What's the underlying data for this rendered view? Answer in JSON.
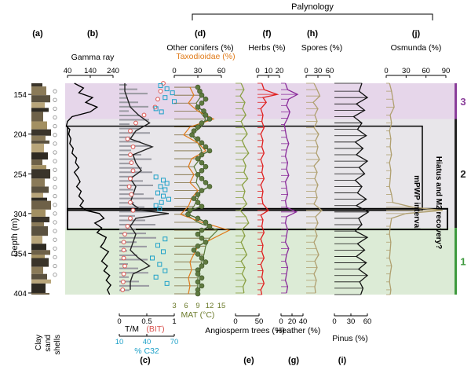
{
  "chart_data": {
    "type": "line",
    "title": "Palynology",
    "depth_axis": {
      "label": "Depth (m)",
      "ticks": [
        154,
        204,
        254,
        304,
        354,
        404
      ],
      "range": [
        140,
        406
      ]
    },
    "zones": [
      {
        "label": "3",
        "top": 140,
        "bottom": 185,
        "color": "#e6d6ea",
        "bar": "#8a3e9a"
      },
      {
        "label": "2",
        "top": 185,
        "bottom": 322,
        "color": "#e8e6ea",
        "bar": "#222222"
      },
      {
        "label": "1",
        "top": 322,
        "bottom": 406,
        "color": "#dcebd6",
        "bar": "#3e9a3e"
      }
    ],
    "annotations": {
      "mpwp": {
        "label": "mPWP interval",
        "top": 194,
        "bottom": 300
      },
      "hiatus": {
        "label": "Hiatus and M2 recovery?",
        "top": 298,
        "bottom": 324
      }
    },
    "lithology_legend": [
      "Clay",
      "sand",
      "shells"
    ],
    "panels": [
      {
        "id": "a",
        "label": "(a)"
      },
      {
        "id": "b",
        "label": "(b)",
        "name": "Gamma ray",
        "ticks": [
          40,
          140,
          240
        ]
      },
      {
        "id": "c",
        "label": "(c)",
        "lines": [
          {
            "name": "T/M",
            "color": "#222222",
            "ticks": [
              "0",
              "0.5",
              "1"
            ]
          },
          {
            "name": "(BIT)",
            "color": "#d9534f"
          },
          {
            "name": "% C32",
            "color": "#1ea1c8",
            "ticks": [
              "10",
              "40",
              "70"
            ]
          }
        ]
      },
      {
        "id": "d",
        "label": "(d)",
        "names": [
          "Other conifers (%)",
          "Taxodioidae (%)",
          "MAT (°C)"
        ],
        "ticks_top": [
          0,
          30,
          60
        ],
        "ticks_bottom": [
          3,
          6,
          9,
          12,
          15
        ]
      },
      {
        "id": "e",
        "label": "(e)",
        "name": "Angiosperm trees (%)",
        "ticks": [
          0,
          50
        ]
      },
      {
        "id": "f",
        "label": "(f)",
        "name": "Herbs (%)",
        "ticks": [
          0,
          10,
          20
        ]
      },
      {
        "id": "g",
        "label": "(g)",
        "name": "Heather (%)",
        "ticks": [
          0,
          20,
          40
        ]
      },
      {
        "id": "h",
        "label": "(h)",
        "name": "Spores (%)",
        "ticks": [
          0,
          30,
          60
        ]
      },
      {
        "id": "i",
        "label": "(i)",
        "name": "Pinus (%)",
        "ticks": [
          0,
          30,
          60
        ]
      },
      {
        "id": "j",
        "label": "(j)",
        "name": "Osmunda (%)",
        "ticks": [
          0,
          30,
          60,
          90
        ]
      }
    ],
    "series": {
      "gamma": {
        "depths": [
          140,
          146,
          152,
          158,
          164,
          170,
          176,
          182,
          188,
          194,
          198,
          204,
          210,
          216,
          222,
          228,
          234,
          240,
          246,
          252,
          258,
          264,
          270,
          276,
          282,
          288,
          294,
          300,
          304,
          310,
          316,
          322,
          328,
          334,
          340,
          346,
          352,
          358,
          364,
          370,
          376,
          382,
          388,
          394,
          400,
          406
        ],
        "values": [
          70,
          110,
          90,
          150,
          120,
          170,
          140,
          60,
          40,
          35,
          50,
          45,
          55,
          50,
          65,
          60,
          80,
          75,
          90,
          70,
          85,
          95,
          80,
          100,
          90,
          110,
          95,
          120,
          180,
          200,
          160,
          190,
          170,
          210,
          200,
          185,
          220,
          205,
          190,
          215,
          200,
          225,
          210,
          230,
          215,
          225
        ]
      },
      "tm": {
        "depths": [
          140,
          150,
          160,
          170,
          180,
          190,
          200,
          210,
          220,
          230,
          240,
          250,
          260,
          270,
          280,
          290,
          300,
          304,
          310,
          320,
          330,
          340,
          350,
          360,
          370,
          380,
          390,
          400
        ],
        "values": [
          0.1,
          0.1,
          0.15,
          0.2,
          0.35,
          0.55,
          0.3,
          0.2,
          0.6,
          0.25,
          0.3,
          0.4,
          0.2,
          0.3,
          0.25,
          0.2,
          0.4,
          0.9,
          0.3,
          0.2,
          0.3,
          0.25,
          0.2,
          0.35,
          0.55,
          0.25,
          0.2,
          0.2
        ]
      },
      "bit": {
        "depths": [
          140,
          150,
          160,
          170,
          180,
          190,
          200,
          210,
          220,
          230,
          240,
          250,
          260,
          270,
          280,
          290,
          300,
          310,
          320,
          330,
          340,
          350,
          360,
          370,
          380,
          390,
          400
        ],
        "values": [
          0.8,
          0.75,
          0.7,
          0.65,
          0.45,
          0.3,
          0.2,
          0.15,
          0.25,
          0.2,
          0.22,
          0.25,
          0.2,
          0.18,
          0.22,
          0.2,
          0.25,
          0.2,
          0.15,
          0.1,
          0.08,
          0.08,
          0.08,
          0.1,
          0.08,
          0.07,
          0.06
        ]
      },
      "c32": {
        "depths": [
          143,
          147,
          152,
          158,
          163,
          172,
          176,
          258,
          262,
          266,
          270,
          274,
          278,
          282,
          286,
          290,
          294,
          298,
          336,
          344,
          352,
          360,
          368,
          376,
          384,
          392
        ],
        "values": [
          55,
          62,
          68,
          60,
          70,
          50,
          56,
          50,
          58,
          62,
          55,
          60,
          52,
          58,
          64,
          56,
          50,
          54,
          60,
          52,
          58,
          46,
          54,
          60,
          50,
          62
        ]
      },
      "other_conifers": {
        "depths": [
          145,
          155,
          165,
          175,
          185,
          195,
          205,
          215,
          225,
          235,
          245,
          255,
          265,
          275,
          285,
          295,
          305,
          315,
          325,
          335,
          345,
          355,
          365,
          375,
          385,
          395,
          405
        ],
        "values": [
          30,
          35,
          28,
          32,
          40,
          34,
          22,
          30,
          35,
          33,
          25,
          30,
          28,
          34,
          30,
          25,
          15,
          30,
          55,
          45,
          40,
          38,
          35,
          33,
          30,
          30,
          28
        ]
      },
      "taxodioidae": {
        "depths": [
          145,
          155,
          165,
          175,
          185,
          195,
          205,
          215,
          225,
          235,
          245,
          255,
          265,
          275,
          285,
          295,
          305,
          315,
          325,
          335,
          345,
          355,
          365,
          375,
          385,
          395,
          405
        ],
        "values": [
          20,
          25,
          18,
          30,
          50,
          20,
          12,
          30,
          40,
          22,
          18,
          25,
          20,
          30,
          22,
          18,
          8,
          35,
          70,
          50,
          30,
          25,
          20,
          22,
          18,
          20,
          18
        ]
      },
      "mat": {
        "depths": [
          145,
          150,
          155,
          160,
          165,
          170,
          175,
          180,
          185,
          190,
          195,
          200,
          205,
          210,
          215,
          220,
          225,
          230,
          235,
          240,
          245,
          250,
          255,
          260,
          265,
          270,
          275,
          280,
          285,
          290,
          295,
          300,
          305,
          310,
          315,
          320,
          325,
          330,
          335,
          340,
          345,
          350,
          355,
          360,
          365,
          370,
          375,
          380,
          385,
          390,
          395,
          400,
          405
        ],
        "values": [
          9,
          9.5,
          10,
          11,
          10,
          9,
          10.5,
          11,
          12,
          10,
          9,
          8,
          7.5,
          9,
          10,
          11,
          12,
          10,
          9,
          10,
          11,
          10,
          9,
          10,
          11,
          12,
          10,
          9,
          8,
          9,
          10,
          7,
          6.5,
          9,
          11,
          12,
          10,
          9,
          10,
          11,
          9,
          8,
          9,
          10,
          11,
          10,
          9,
          9,
          10,
          9,
          10,
          9,
          9
        ]
      },
      "angio": {
        "depths": [
          140,
          148,
          156,
          164,
          172,
          180,
          188,
          196,
          204,
          212,
          220,
          228,
          236,
          244,
          252,
          260,
          268,
          276,
          284,
          292,
          300,
          308,
          316,
          324,
          332,
          340,
          348,
          356,
          364,
          372,
          380,
          388,
          396,
          404
        ],
        "values": [
          12,
          18,
          10,
          20,
          15,
          22,
          12,
          18,
          25,
          14,
          20,
          28,
          16,
          22,
          18,
          26,
          14,
          20,
          16,
          24,
          10,
          22,
          28,
          14,
          20,
          12,
          18,
          24,
          12,
          20,
          14,
          22,
          16,
          18
        ]
      },
      "herbs": {
        "depths": [
          140,
          148,
          154,
          158,
          164,
          172,
          180,
          188,
          196,
          204,
          212,
          220,
          228,
          236,
          244,
          252,
          260,
          268,
          276,
          284,
          292,
          300,
          306,
          312,
          320,
          328,
          336,
          344,
          352,
          360,
          368,
          376,
          384,
          392,
          400,
          406
        ],
        "values": [
          4,
          6,
          18,
          5,
          8,
          3,
          5,
          4,
          6,
          3,
          5,
          4,
          6,
          3,
          5,
          4,
          6,
          3,
          5,
          4,
          5,
          10,
          3,
          5,
          4,
          6,
          3,
          5,
          4,
          6,
          3,
          5,
          4,
          6,
          3,
          4
        ]
      },
      "heather": {
        "depths": [
          140,
          148,
          154,
          160,
          168,
          176,
          184,
          192,
          200,
          208,
          216,
          224,
          232,
          240,
          248,
          256,
          264,
          272,
          280,
          288,
          296,
          302,
          308,
          316,
          324,
          332,
          340,
          348,
          356,
          364,
          372,
          380,
          388,
          396,
          404
        ],
        "values": [
          8,
          12,
          30,
          14,
          10,
          16,
          12,
          6,
          8,
          10,
          14,
          10,
          8,
          12,
          10,
          14,
          8,
          10,
          12,
          8,
          10,
          28,
          10,
          8,
          12,
          10,
          8,
          14,
          10,
          8,
          12,
          10,
          8,
          12,
          10
        ]
      },
      "spores": {
        "depths": [
          140,
          148,
          156,
          164,
          172,
          180,
          188,
          196,
          204,
          212,
          220,
          228,
          236,
          244,
          252,
          260,
          268,
          276,
          284,
          292,
          300,
          308,
          316,
          324,
          332,
          340,
          348,
          356,
          364,
          372,
          380,
          388,
          396,
          404
        ],
        "values": [
          20,
          28,
          35,
          18,
          30,
          22,
          28,
          20,
          32,
          24,
          30,
          26,
          34,
          20,
          28,
          22,
          30,
          24,
          28,
          20,
          40,
          24,
          30,
          22,
          28,
          20,
          26,
          32,
          22,
          28,
          20,
          26,
          22,
          24
        ]
      },
      "pinus": {
        "depths": [
          140,
          150,
          158,
          166,
          174,
          182,
          190,
          198,
          206,
          214,
          222,
          230,
          238,
          246,
          254,
          262,
          270,
          278,
          286,
          294,
          302,
          310,
          318,
          326,
          334,
          342,
          350,
          358,
          366,
          374,
          382,
          390,
          398,
          406
        ],
        "values": [
          50,
          45,
          60,
          40,
          55,
          35,
          50,
          42,
          58,
          38,
          52,
          40,
          60,
          45,
          55,
          38,
          50,
          42,
          58,
          40,
          62,
          44,
          50,
          38,
          60,
          42,
          55,
          40,
          58,
          44,
          60,
          46,
          52,
          48
        ]
      },
      "osmunda": {
        "depths": [
          140,
          150,
          160,
          170,
          180,
          190,
          200,
          210,
          220,
          230,
          240,
          250,
          260,
          270,
          280,
          290,
          296,
          300,
          304,
          310,
          320,
          330,
          340,
          350,
          360,
          370,
          380,
          390,
          400,
          406
        ],
        "values": [
          5,
          8,
          10,
          12,
          6,
          8,
          5,
          7,
          6,
          8,
          5,
          7,
          6,
          5,
          8,
          10,
          40,
          85,
          30,
          8,
          6,
          5,
          7,
          6,
          5,
          8,
          6,
          5,
          7,
          6
        ]
      }
    }
  }
}
